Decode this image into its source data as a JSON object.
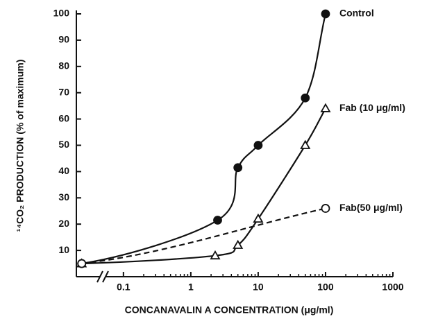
{
  "chart_data": {
    "type": "line",
    "x_label": "CONCANAVALIN A CONCENTRATION (μg/ml)",
    "y_label": "¹⁴CO₂ PRODUCTION (% of maximum)",
    "x_scale": "log",
    "xlim": [
      0.02,
      1000
    ],
    "xticks": [
      0.1,
      1,
      10,
      100,
      1000
    ],
    "ylim": [
      0,
      100
    ],
    "yticks": [
      10,
      20,
      30,
      40,
      50,
      60,
      70,
      80,
      90,
      100
    ],
    "axis_break": true,
    "color": "#111111",
    "series": [
      {
        "name": "Control",
        "marker": "filled-circle",
        "dashed": false,
        "x": [
          0.024,
          2.5,
          5,
          10,
          50,
          100
        ],
        "values": [
          5,
          21.5,
          41.5,
          50,
          68,
          100
        ]
      },
      {
        "name": "Fab (10  μg/ml)",
        "marker": "open-triangle",
        "dashed": false,
        "x": [
          0.024,
          2.3,
          5,
          10,
          50,
          100
        ],
        "values": [
          5,
          8,
          12,
          22,
          50,
          64
        ]
      },
      {
        "name": "Fab(50 μg/ml)",
        "marker": "open-circle",
        "dashed": true,
        "x": [
          0.024,
          100
        ],
        "values": [
          5,
          26
        ]
      }
    ]
  }
}
